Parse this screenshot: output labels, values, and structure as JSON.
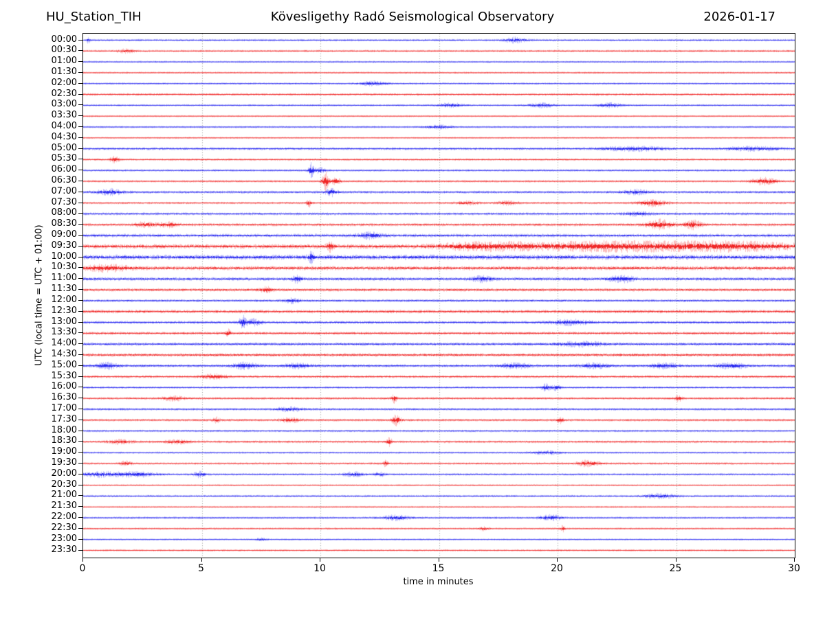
{
  "header": {
    "station": "HU_Station_TIH",
    "observatory": "Kövesligethy Radó Seismological Observatory",
    "date": "2026-01-17"
  },
  "chart_data": {
    "type": "line",
    "variant": "helicorder-dayplot",
    "title": "Kövesligethy Radó Seismological Observatory",
    "station": "HU_Station_TIH",
    "date": "2026-01-17",
    "xlabel": "time in minutes",
    "ylabel": "UTC (local time = UTC + 01:00)",
    "x_range": [
      0,
      30
    ],
    "x_ticks": [
      0,
      5,
      10,
      15,
      20,
      25,
      30
    ],
    "minutes_per_row": 30,
    "grid": {
      "vertical_dashed_at": [
        5,
        10,
        15,
        20,
        25
      ],
      "color": "#999999"
    },
    "trace_colors": {
      "hour": "#0000ee",
      "half_hour": "#ee0000"
    },
    "rows": [
      {
        "label": "00:00",
        "color": "blue",
        "n": 1.0,
        "ev": [
          {
            "t": 0.2,
            "a": 2.0,
            "w": 0.08
          },
          {
            "t": 18.2,
            "a": 2.0,
            "w": 0.4
          }
        ]
      },
      {
        "label": "00:30",
        "color": "red",
        "n": 1.0,
        "ev": [
          {
            "t": 1.8,
            "a": 1.4,
            "w": 0.3
          }
        ]
      },
      {
        "label": "01:00",
        "color": "blue",
        "n": 0.9,
        "ev": []
      },
      {
        "label": "01:30",
        "color": "red",
        "n": 0.9,
        "ev": []
      },
      {
        "label": "02:00",
        "color": "blue",
        "n": 0.9,
        "ev": [
          {
            "t": 12.2,
            "a": 1.6,
            "w": 0.5
          }
        ]
      },
      {
        "label": "02:30",
        "color": "red",
        "n": 1.1,
        "ev": []
      },
      {
        "label": "03:00",
        "color": "blue",
        "n": 0.9,
        "ev": [
          {
            "t": 15.5,
            "a": 1.6,
            "w": 0.5
          },
          {
            "t": 19.3,
            "a": 1.7,
            "w": 0.5
          },
          {
            "t": 22.2,
            "a": 1.7,
            "w": 0.5
          }
        ]
      },
      {
        "label": "03:30",
        "color": "red",
        "n": 0.8,
        "ev": []
      },
      {
        "label": "04:00",
        "color": "blue",
        "n": 0.9,
        "ev": [
          {
            "t": 15.0,
            "a": 1.4,
            "w": 0.5
          }
        ]
      },
      {
        "label": "04:30",
        "color": "red",
        "n": 0.8,
        "ev": []
      },
      {
        "label": "05:00",
        "color": "blue",
        "n": 1.2,
        "ev": [
          {
            "t": 23.2,
            "a": 1.5,
            "w": 1.2
          },
          {
            "t": 28.2,
            "a": 1.4,
            "w": 1.0
          }
        ]
      },
      {
        "label": "05:30",
        "color": "red",
        "n": 1.0,
        "ev": [
          {
            "t": 1.3,
            "a": 2.4,
            "w": 0.18
          }
        ]
      },
      {
        "label": "06:00",
        "color": "blue",
        "n": 1.0,
        "ev": [
          {
            "t": 9.6,
            "a": 6.5,
            "w": 0.1
          },
          {
            "t": 9.95,
            "a": 2.0,
            "w": 0.25
          }
        ]
      },
      {
        "label": "06:30",
        "color": "red",
        "n": 1.0,
        "ev": [
          {
            "t": 10.2,
            "a": 8.5,
            "w": 0.13
          },
          {
            "t": 10.65,
            "a": 3.2,
            "w": 0.18
          },
          {
            "t": 28.7,
            "a": 2.8,
            "w": 0.5
          }
        ]
      },
      {
        "label": "07:00",
        "color": "blue",
        "n": 1.2,
        "ev": [
          {
            "t": 1.1,
            "a": 2.4,
            "w": 0.5
          },
          {
            "t": 10.45,
            "a": 3.2,
            "w": 0.22
          },
          {
            "t": 23.3,
            "a": 1.7,
            "w": 0.5
          }
        ]
      },
      {
        "label": "07:30",
        "color": "red",
        "n": 1.0,
        "ev": [
          {
            "t": 9.5,
            "a": 3.4,
            "w": 0.1
          },
          {
            "t": 16.2,
            "a": 1.5,
            "w": 0.4
          },
          {
            "t": 17.9,
            "a": 1.5,
            "w": 0.4
          },
          {
            "t": 24.0,
            "a": 2.7,
            "w": 0.55
          }
        ]
      },
      {
        "label": "08:00",
        "color": "blue",
        "n": 1.2,
        "ev": [
          {
            "t": 23.4,
            "a": 1.5,
            "w": 0.5
          }
        ]
      },
      {
        "label": "08:30",
        "color": "red",
        "n": 1.3,
        "ev": [
          {
            "t": 2.6,
            "a": 1.9,
            "w": 0.4
          },
          {
            "t": 3.6,
            "a": 1.9,
            "w": 0.4
          },
          {
            "t": 24.3,
            "a": 3.8,
            "w": 0.5
          },
          {
            "t": 25.7,
            "a": 3.2,
            "w": 0.35
          }
        ]
      },
      {
        "label": "09:00",
        "color": "blue",
        "n": 1.5,
        "ev": [
          {
            "t": 12.1,
            "a": 2.2,
            "w": 0.5
          }
        ]
      },
      {
        "label": "09:30",
        "color": "red",
        "n": 2.0,
        "ev": [
          {
            "t": 10.4,
            "a": 3.8,
            "w": 0.13
          },
          {
            "t": 17.0,
            "a": 2.6,
            "w": 2.0
          },
          {
            "t": 22.0,
            "a": 3.0,
            "w": 3.0
          },
          {
            "t": 27.0,
            "a": 3.0,
            "w": 3.0
          }
        ]
      },
      {
        "label": "10:00",
        "color": "blue",
        "n": 2.2,
        "ev": [
          {
            "t": 9.6,
            "a": 4.5,
            "w": 0.1
          }
        ]
      },
      {
        "label": "10:30",
        "color": "red",
        "n": 1.8,
        "ev": [
          {
            "t": 1.0,
            "a": 2.2,
            "w": 0.8
          }
        ]
      },
      {
        "label": "11:00",
        "color": "blue",
        "n": 1.5,
        "ev": [
          {
            "t": 9.0,
            "a": 2.8,
            "w": 0.18
          },
          {
            "t": 16.8,
            "a": 1.9,
            "w": 0.4
          },
          {
            "t": 22.7,
            "a": 2.2,
            "w": 0.5
          }
        ]
      },
      {
        "label": "11:30",
        "color": "red",
        "n": 1.4,
        "ev": [
          {
            "t": 7.7,
            "a": 2.4,
            "w": 0.22
          }
        ]
      },
      {
        "label": "12:00",
        "color": "blue",
        "n": 1.2,
        "ev": [
          {
            "t": 8.8,
            "a": 1.9,
            "w": 0.3
          }
        ]
      },
      {
        "label": "12:30",
        "color": "red",
        "n": 1.5,
        "ev": []
      },
      {
        "label": "13:00",
        "color": "blue",
        "n": 1.3,
        "ev": [
          {
            "t": 6.7,
            "a": 5.8,
            "w": 0.13
          },
          {
            "t": 7.15,
            "a": 2.2,
            "w": 0.35
          },
          {
            "t": 20.5,
            "a": 1.9,
            "w": 0.8
          }
        ]
      },
      {
        "label": "13:30",
        "color": "red",
        "n": 1.3,
        "ev": [
          {
            "t": 6.1,
            "a": 2.9,
            "w": 0.1
          }
        ]
      },
      {
        "label": "14:00",
        "color": "blue",
        "n": 1.4,
        "ev": [
          {
            "t": 21.0,
            "a": 1.9,
            "w": 0.8
          }
        ]
      },
      {
        "label": "14:30",
        "color": "red",
        "n": 1.5,
        "ev": []
      },
      {
        "label": "15:00",
        "color": "blue",
        "n": 1.3,
        "ev": [
          {
            "t": 1.0,
            "a": 2.4,
            "w": 0.4
          },
          {
            "t": 6.8,
            "a": 2.4,
            "w": 0.5
          },
          {
            "t": 9.0,
            "a": 1.9,
            "w": 0.5
          },
          {
            "t": 18.2,
            "a": 1.9,
            "w": 0.6
          },
          {
            "t": 21.5,
            "a": 1.9,
            "w": 0.6
          },
          {
            "t": 24.5,
            "a": 1.9,
            "w": 0.6
          },
          {
            "t": 27.3,
            "a": 2.3,
            "w": 0.6
          }
        ]
      },
      {
        "label": "15:30",
        "color": "red",
        "n": 1.2,
        "ev": [
          {
            "t": 5.5,
            "a": 1.7,
            "w": 0.5
          }
        ]
      },
      {
        "label": "16:00",
        "color": "blue",
        "n": 1.0,
        "ev": [
          {
            "t": 19.5,
            "a": 2.8,
            "w": 0.18
          },
          {
            "t": 19.95,
            "a": 2.3,
            "w": 0.18
          }
        ]
      },
      {
        "label": "16:30",
        "color": "red",
        "n": 1.1,
        "ev": [
          {
            "t": 3.8,
            "a": 1.7,
            "w": 0.4
          },
          {
            "t": 13.1,
            "a": 3.4,
            "w": 0.1
          },
          {
            "t": 25.1,
            "a": 2.5,
            "w": 0.13
          }
        ]
      },
      {
        "label": "17:00",
        "color": "blue",
        "n": 1.1,
        "ev": [
          {
            "t": 8.7,
            "a": 1.7,
            "w": 0.5
          }
        ]
      },
      {
        "label": "17:30",
        "color": "red",
        "n": 1.1,
        "ev": [
          {
            "t": 5.6,
            "a": 2.1,
            "w": 0.13
          },
          {
            "t": 8.7,
            "a": 1.7,
            "w": 0.4
          },
          {
            "t": 13.2,
            "a": 4.8,
            "w": 0.16
          },
          {
            "t": 20.1,
            "a": 2.5,
            "w": 0.13
          }
        ]
      },
      {
        "label": "18:00",
        "color": "blue",
        "n": 1.0,
        "ev": []
      },
      {
        "label": "18:30",
        "color": "red",
        "n": 1.1,
        "ev": [
          {
            "t": 1.5,
            "a": 1.5,
            "w": 0.5
          },
          {
            "t": 4.0,
            "a": 1.5,
            "w": 0.5
          },
          {
            "t": 12.9,
            "a": 3.4,
            "w": 0.1
          }
        ]
      },
      {
        "label": "19:00",
        "color": "blue",
        "n": 0.9,
        "ev": [
          {
            "t": 19.5,
            "a": 1.4,
            "w": 0.6
          }
        ]
      },
      {
        "label": "19:30",
        "color": "red",
        "n": 1.0,
        "ev": [
          {
            "t": 1.8,
            "a": 1.9,
            "w": 0.22
          },
          {
            "t": 12.75,
            "a": 2.9,
            "w": 0.1
          },
          {
            "t": 21.3,
            "a": 2.5,
            "w": 0.45
          }
        ]
      },
      {
        "label": "20:00",
        "color": "blue",
        "n": 1.0,
        "ev": [
          {
            "t": 0.7,
            "a": 1.9,
            "w": 0.8
          },
          {
            "t": 2.2,
            "a": 1.9,
            "w": 0.8
          },
          {
            "t": 4.9,
            "a": 2.3,
            "w": 0.22
          },
          {
            "t": 11.4,
            "a": 1.7,
            "w": 0.4
          },
          {
            "t": 12.5,
            "a": 1.7,
            "w": 0.22
          }
        ]
      },
      {
        "label": "20:30",
        "color": "red",
        "n": 0.8,
        "ev": []
      },
      {
        "label": "21:00",
        "color": "blue",
        "n": 1.0,
        "ev": [
          {
            "t": 24.3,
            "a": 1.7,
            "w": 0.6
          }
        ]
      },
      {
        "label": "21:30",
        "color": "red",
        "n": 0.8,
        "ev": []
      },
      {
        "label": "22:00",
        "color": "blue",
        "n": 1.0,
        "ev": [
          {
            "t": 13.2,
            "a": 2.1,
            "w": 0.5
          },
          {
            "t": 19.7,
            "a": 2.5,
            "w": 0.4
          }
        ]
      },
      {
        "label": "22:30",
        "color": "red",
        "n": 0.9,
        "ev": [
          {
            "t": 16.9,
            "a": 1.4,
            "w": 0.2
          },
          {
            "t": 20.2,
            "a": 2.9,
            "w": 0.09
          }
        ]
      },
      {
        "label": "23:00",
        "color": "blue",
        "n": 0.8,
        "ev": [
          {
            "t": 7.5,
            "a": 1.2,
            "w": 0.2
          }
        ]
      },
      {
        "label": "23:30",
        "color": "red",
        "n": 0.9,
        "ev": []
      }
    ]
  }
}
